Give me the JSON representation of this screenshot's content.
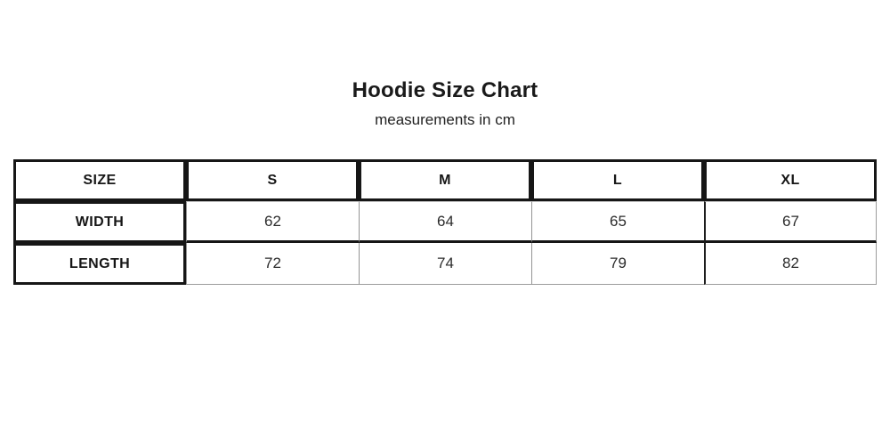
{
  "page": {
    "background": "#ffffff"
  },
  "header": {
    "title": "Hoodie Size Chart",
    "subtitle": "measurements in cm"
  },
  "table": {
    "columns": [
      "SIZE",
      "S",
      "M",
      "L",
      "XL"
    ],
    "rows": [
      {
        "label": "WIDTH",
        "values": [
          "62",
          "64",
          "65",
          "67"
        ]
      },
      {
        "label": "LENGTH",
        "values": [
          "72",
          "74",
          "79",
          "82"
        ]
      }
    ]
  },
  "colors": {
    "text": "#1a1a1a",
    "border_thick": "#161616",
    "border_thin": "#949494",
    "background": "#ffffff"
  },
  "chart_data": {
    "type": "table",
    "title": "Hoodie Size Chart",
    "subtitle": "measurements in cm",
    "units": "cm",
    "columns": [
      "SIZE",
      "S",
      "M",
      "L",
      "XL"
    ],
    "rows": [
      [
        "WIDTH",
        62,
        64,
        65,
        67
      ],
      [
        "LENGTH",
        72,
        74,
        79,
        82
      ]
    ]
  }
}
